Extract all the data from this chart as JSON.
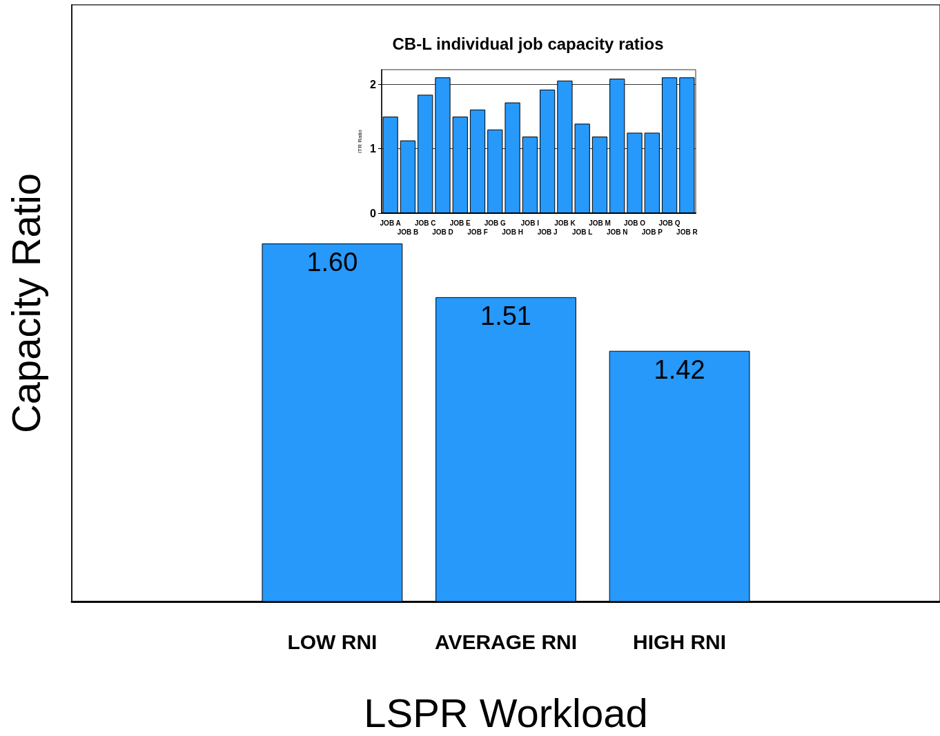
{
  "chart_data": [
    {
      "type": "bar",
      "xlabel": "LSPR Workload",
      "ylabel": "Capacity Ratio",
      "categories": [
        "LOW RNI",
        "AVERAGE RNI",
        "HIGH RNI"
      ],
      "values": [
        1.6,
        1.51,
        1.42
      ],
      "value_labels": [
        "1.60",
        "1.51",
        "1.42"
      ],
      "color": "#2699fb",
      "ylim": [
        1,
        2
      ],
      "tick_labels": "x",
      "grid": false
    },
    {
      "type": "bar",
      "title": "CB-L individual job capacity ratios",
      "ylabel": "ITR Ratio",
      "categories": [
        "JOB A",
        "JOB B",
        "JOB C",
        "JOB D",
        "JOB E",
        "JOB F",
        "JOB G",
        "JOB H",
        "JOB I",
        "JOB J",
        "JOB K",
        "JOB L",
        "JOB M",
        "JOB N",
        "JOB O",
        "JOB P",
        "JOB Q",
        "JOB R"
      ],
      "values": [
        1.5,
        1.13,
        1.84,
        2.11,
        1.5,
        1.61,
        1.3,
        1.72,
        1.19,
        1.92,
        2.06,
        1.39,
        1.19,
        2.09,
        1.25,
        1.25,
        2.11,
        2.11
      ],
      "color": "#2699fb",
      "ylim": [
        0,
        2.23
      ],
      "yticks": [
        0,
        1,
        2
      ],
      "grid": "y"
    }
  ]
}
